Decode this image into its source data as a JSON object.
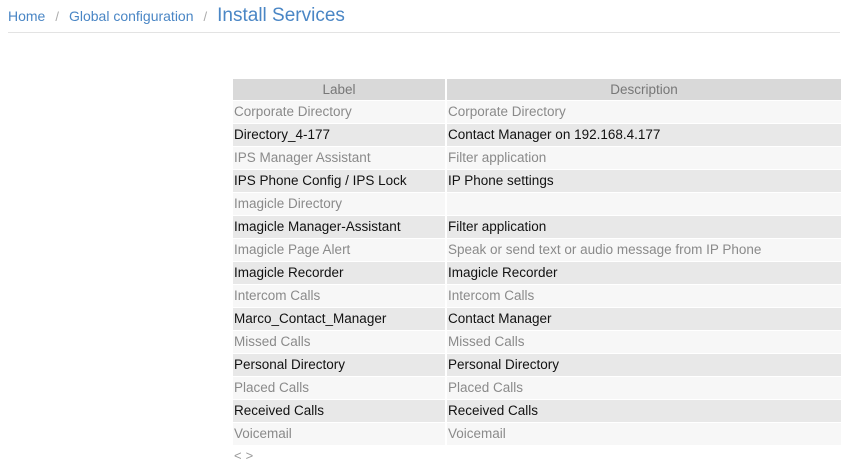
{
  "breadcrumb": {
    "items": [
      "Home",
      "Global configuration"
    ],
    "current": "Install Services",
    "separator": "/"
  },
  "table": {
    "headers": [
      "Label",
      "Description"
    ],
    "rows": [
      [
        "Corporate Directory",
        "Corporate Directory"
      ],
      [
        "Directory_4-177",
        "Contact Manager on 192.168.4.177"
      ],
      [
        "IPS Manager Assistant",
        "Filter application"
      ],
      [
        "IPS Phone Config / IPS Lock",
        "IP Phone settings"
      ],
      [
        "Imagicle Directory",
        ""
      ],
      [
        "Imagicle Manager-Assistant",
        "Filter application"
      ],
      [
        "Imagicle Page Alert",
        "Speak or send text or audio message from IP Phone"
      ],
      [
        "Imagicle Recorder",
        "Imagicle Recorder"
      ],
      [
        "Intercom Calls",
        "Intercom Calls"
      ],
      [
        "Marco_Contact_Manager",
        "Contact Manager"
      ],
      [
        "Missed Calls",
        "Missed Calls"
      ],
      [
        "Personal Directory",
        "Personal Directory"
      ],
      [
        "Placed Calls",
        "Placed Calls"
      ],
      [
        "Received Calls",
        "Received Calls"
      ],
      [
        "Voicemail",
        "Voicemail"
      ]
    ]
  },
  "pager": {
    "prev": "<",
    "next": ">"
  }
}
